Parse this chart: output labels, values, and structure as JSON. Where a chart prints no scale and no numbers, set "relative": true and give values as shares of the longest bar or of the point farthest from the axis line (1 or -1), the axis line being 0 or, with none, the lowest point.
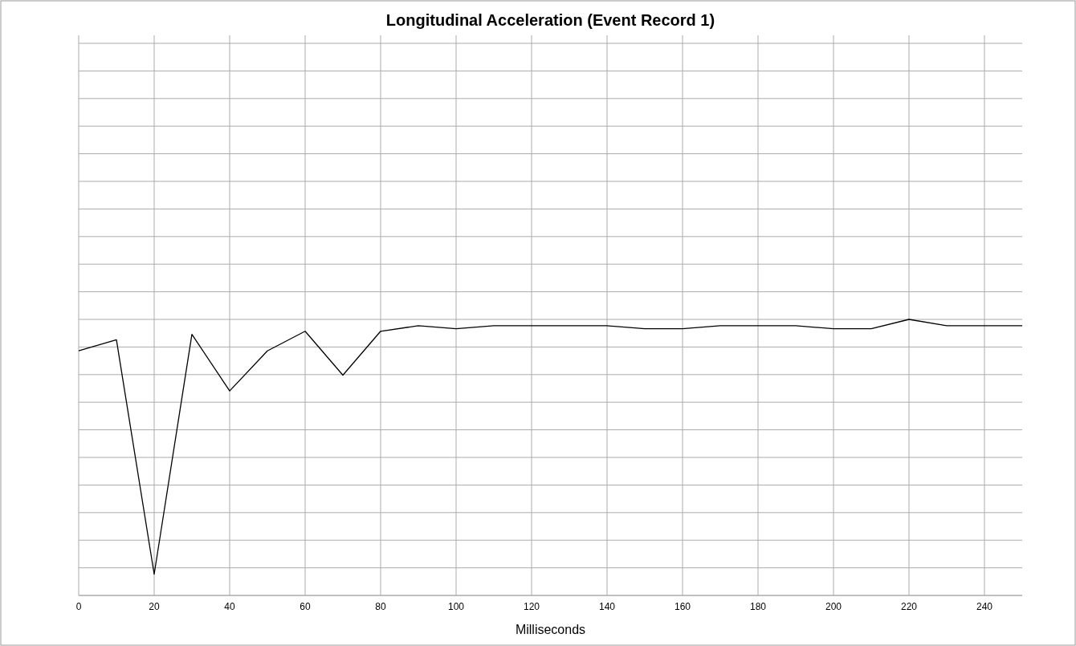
{
  "chart_data": {
    "type": "line",
    "title": "Longitudinal Acceleration (Event Record 1)",
    "xlabel": "Milliseconds",
    "x": [
      0,
      10,
      20,
      30,
      40,
      50,
      60,
      70,
      80,
      90,
      100,
      110,
      120,
      130,
      140,
      150,
      160,
      170,
      180,
      190,
      200,
      210,
      220,
      230,
      240,
      250
    ],
    "series": [
      {
        "color": "#000000",
        "values": [
          0.886,
          0.926,
          0.077,
          0.946,
          0.741,
          0.886,
          0.957,
          0.798,
          0.957,
          0.977,
          0.966,
          0.977,
          0.977,
          0.977,
          0.977,
          0.966,
          0.966,
          0.977,
          0.977,
          0.977,
          0.966,
          0.966,
          1,
          0.977,
          0.977,
          0.977
        ]
      }
    ],
    "relative": true,
    "xlim": [
      0,
      250
    ],
    "xticks": [
      0,
      20,
      40,
      60,
      80,
      100,
      120,
      140,
      160,
      180,
      200,
      220,
      240
    ],
    "grid": true,
    "marker": "none",
    "line_style": "solid"
  }
}
